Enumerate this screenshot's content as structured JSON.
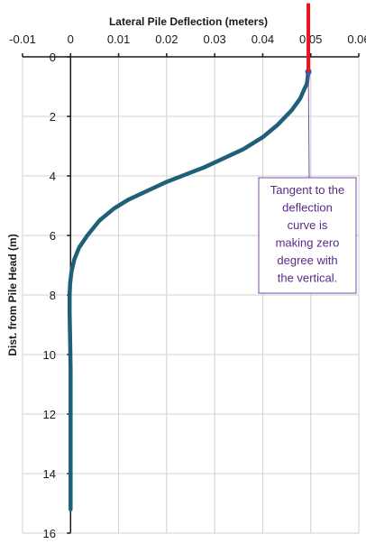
{
  "chart_data": {
    "type": "line",
    "title": "",
    "xlabel": "Lateral Pile  Deflection (meters)",
    "ylabel": "Dist. from Pile Head (m)",
    "xlim": [
      -0.01,
      0.06
    ],
    "ylim": [
      0,
      16
    ],
    "y_inverted": true,
    "x_axis_position": "top",
    "x_ticks": [
      -0.01,
      0,
      0.01,
      0.02,
      0.03,
      0.04,
      0.05,
      0.06
    ],
    "x_tick_labels": [
      "-0.01",
      "0",
      "0.01",
      "0.02",
      "0.03",
      "0.04",
      "0.05",
      "0.06"
    ],
    "y_ticks": [
      0,
      2,
      4,
      6,
      8,
      10,
      12,
      14,
      16
    ],
    "y_tick_labels": [
      "0",
      "2",
      "4",
      "6",
      "8",
      "10",
      "12",
      "14",
      "16"
    ],
    "grid": true,
    "series": [
      {
        "color": "#1f5f7a",
        "x": [
          0.0495,
          0.0492,
          0.0486,
          0.0478,
          0.046,
          0.043,
          0.04,
          0.036,
          0.032,
          0.028,
          0.024,
          0.02,
          0.016,
          0.012,
          0.009,
          0.006,
          0.0035,
          0.0018,
          0.0008,
          0.0002,
          -0.0001,
          -0.0002,
          -0.0002,
          -0.0001,
          0.0,
          0.0,
          0.0,
          0.0,
          0.0
        ],
        "y": [
          0.5,
          0.9,
          1.1,
          1.4,
          1.8,
          2.3,
          2.7,
          3.1,
          3.4,
          3.7,
          3.95,
          4.2,
          4.5,
          4.8,
          5.1,
          5.5,
          6.0,
          6.4,
          6.8,
          7.2,
          7.6,
          8.0,
          8.6,
          9.5,
          10.5,
          11.5,
          12.5,
          14.0,
          15.2
        ]
      }
    ],
    "vertical_marker": {
      "x": 0.0495,
      "y_from": -1.8,
      "y_to": 0.5,
      "color": "#e8141e"
    },
    "annotation": {
      "lines": [
        "Tangent to the",
        "deflection",
        "curve is",
        "making zero",
        "degree with",
        "the vertical."
      ],
      "anchor_x": 0.0495,
      "anchor_y": 0.5,
      "border_color": "#7a4aa8",
      "text_color": "#5b2a86"
    }
  }
}
